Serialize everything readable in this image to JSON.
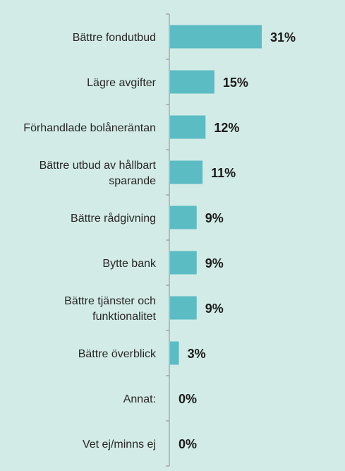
{
  "chart_data": {
    "type": "bar",
    "orientation": "horizontal",
    "categories": [
      [
        "Bättre fondutbud"
      ],
      [
        "Lägre avgifter"
      ],
      [
        "Förhandlade bolåneräntan"
      ],
      [
        "Bättre utbud av hållbart",
        "sparande"
      ],
      [
        "Bättre rådgivning"
      ],
      [
        "Bytte bank"
      ],
      [
        "Bättre tjänster och",
        "funktionalitet"
      ],
      [
        "Bättre överblick"
      ],
      [
        "Annat:"
      ],
      [
        "Vet ej/minns ej"
      ]
    ],
    "values": [
      31,
      15,
      12,
      11,
      9,
      9,
      9,
      3,
      0,
      0
    ],
    "value_labels": [
      "31%",
      "15%",
      "12%",
      "11%",
      "9%",
      "9%",
      "9%",
      "3%",
      "0%",
      "0%"
    ],
    "unit": "%",
    "xlim": [
      0,
      31
    ],
    "grid": false,
    "colors": {
      "bar": "#5bbcc4",
      "background": "#d3ebe6",
      "axis": "#8c8c8c"
    }
  }
}
